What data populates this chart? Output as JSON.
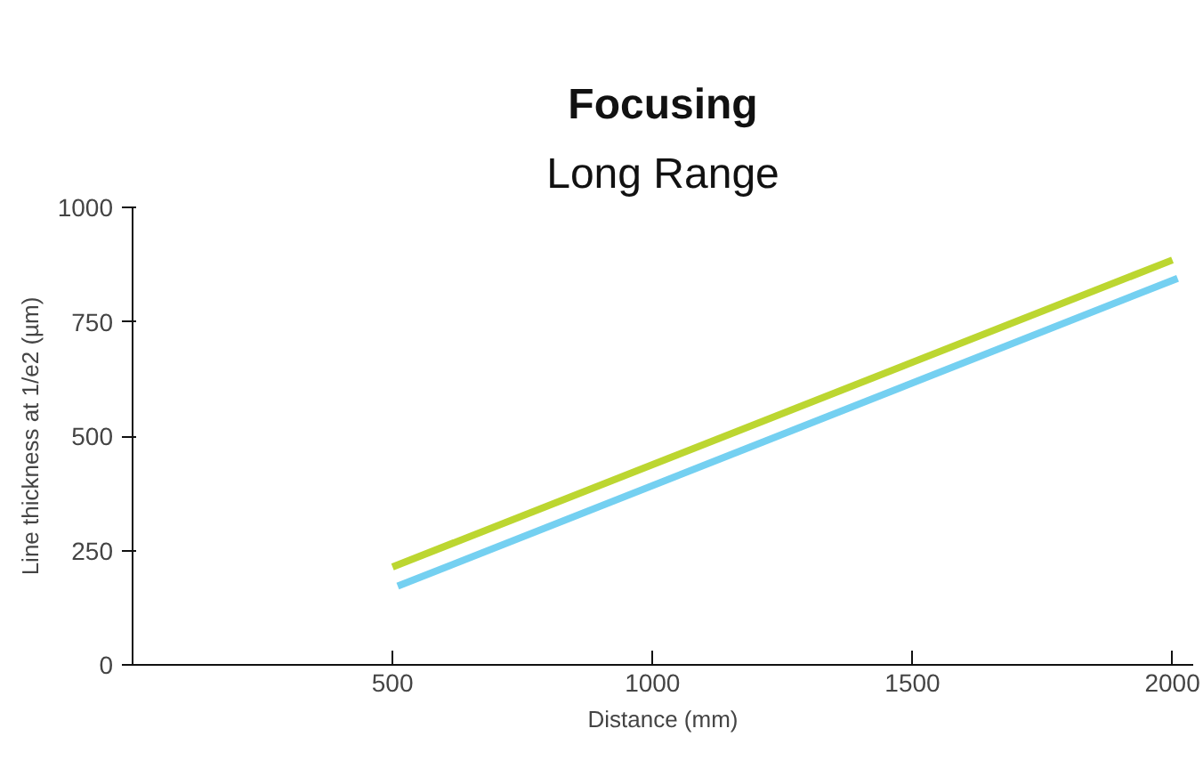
{
  "chart_data": {
    "type": "line",
    "title": "Focusing",
    "subtitle": "Long Range",
    "xlabel": "Distance (mm)",
    "ylabel": "Line thickness at 1/e2 (µm)",
    "series": [
      {
        "color": "#bcd630",
        "x": [
          500,
          2000
        ],
        "values": [
          214,
          885
        ]
      },
      {
        "color": "#74d0f1",
        "x": [
          510,
          2010
        ],
        "values": [
          172,
          845
        ]
      }
    ],
    "xlim": [
      0,
      2040
    ],
    "ylim": [
      0,
      1000
    ],
    "xticks": [
      500,
      1000,
      1500,
      2000
    ],
    "yticks": [
      0,
      250,
      500,
      750,
      1000
    ],
    "grid": false,
    "marker": "none",
    "line_style": "solid"
  }
}
